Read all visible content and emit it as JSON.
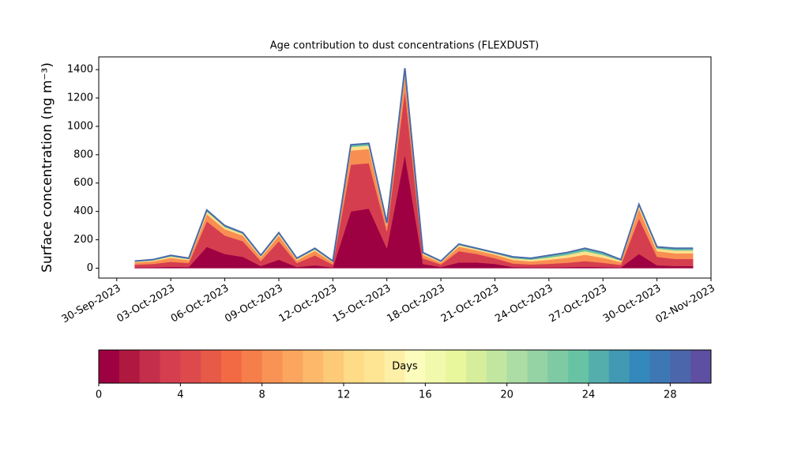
{
  "chart_data": {
    "type": "stackedarea",
    "title": "Age contribution to dust concentrations (FLEXDUST)",
    "y_label": "Surface concentration (ng m⁻³)",
    "x": [
      "2023-10-01",
      "2023-10-02",
      "2023-10-03",
      "2023-10-04",
      "2023-10-05",
      "2023-10-06",
      "2023-10-07",
      "2023-10-08",
      "2023-10-09",
      "2023-10-10",
      "2023-10-11",
      "2023-10-12",
      "2023-10-13",
      "2023-10-14",
      "2023-10-15",
      "2023-10-16",
      "2023-10-17",
      "2023-10-18",
      "2023-10-19",
      "2023-10-20",
      "2023-10-21",
      "2023-10-22",
      "2023-10-23",
      "2023-10-24",
      "2023-10-25",
      "2023-10-26",
      "2023-10-27",
      "2023-10-28",
      "2023-10-29",
      "2023-10-30",
      "2023-10-31",
      "2023-11-01"
    ],
    "series": [
      {
        "color": "#9e0142",
        "values": [
          5,
          6,
          10,
          8,
          150,
          100,
          80,
          15,
          60,
          8,
          20,
          5,
          400,
          420,
          140,
          800,
          30,
          8,
          40,
          40,
          30,
          8,
          6,
          6,
          8,
          10,
          8,
          5,
          100,
          20,
          15,
          15
        ]
      },
      {
        "color": "#d53e4f",
        "values": [
          20,
          24,
          35,
          28,
          180,
          130,
          110,
          35,
          130,
          28,
          70,
          20,
          330,
          320,
          120,
          450,
          40,
          18,
          80,
          60,
          40,
          25,
          20,
          25,
          30,
          40,
          30,
          18,
          250,
          60,
          50,
          50
        ]
      },
      {
        "color": "#f98e52",
        "values": [
          15,
          18,
          28,
          20,
          50,
          45,
          40,
          25,
          40,
          20,
          32,
          15,
          100,
          100,
          40,
          110,
          25,
          14,
          32,
          25,
          25,
          25,
          22,
          28,
          35,
          45,
          35,
          20,
          70,
          40,
          40,
          40
        ]
      },
      {
        "color": "#fee08b",
        "values": [
          6,
          7,
          10,
          8,
          20,
          15,
          12,
          9,
          12,
          8,
          10,
          6,
          25,
          25,
          12,
          30,
          9,
          6,
          11,
          9,
          9,
          12,
          12,
          16,
          20,
          25,
          20,
          10,
          20,
          18,
          20,
          20
        ]
      },
      {
        "color": "#66c2a5",
        "values": [
          4,
          5,
          7,
          6,
          10,
          10,
          8,
          6,
          8,
          6,
          8,
          4,
          15,
          15,
          8,
          20,
          6,
          4,
          7,
          6,
          6,
          10,
          10,
          15,
          17,
          20,
          17,
          7,
          10,
          12,
          15,
          15
        ]
      }
    ],
    "total": {
      "color": "#4a6aa8",
      "values": [
        50,
        60,
        90,
        70,
        410,
        300,
        250,
        90,
        250,
        70,
        140,
        50,
        870,
        880,
        320,
        1410,
        110,
        50,
        170,
        140,
        110,
        80,
        70,
        90,
        110,
        140,
        110,
        60,
        450,
        150,
        140,
        140
      ]
    },
    "xlim": [
      "2023-09-29",
      "2023-11-02"
    ],
    "xticks": [
      {
        "value": "2023-09-30",
        "label": "30-Sep-2023"
      },
      {
        "value": "2023-10-03",
        "label": "03-Oct-2023"
      },
      {
        "value": "2023-10-06",
        "label": "06-Oct-2023"
      },
      {
        "value": "2023-10-09",
        "label": "09-Oct-2023"
      },
      {
        "value": "2023-10-12",
        "label": "12-Oct-2023"
      },
      {
        "value": "2023-10-15",
        "label": "15-Oct-2023"
      },
      {
        "value": "2023-10-18",
        "label": "18-Oct-2023"
      },
      {
        "value": "2023-10-21",
        "label": "21-Oct-2023"
      },
      {
        "value": "2023-10-24",
        "label": "24-Oct-2023"
      },
      {
        "value": "2023-10-27",
        "label": "27-Oct-2023"
      },
      {
        "value": "2023-10-30",
        "label": "30-Oct-2023"
      },
      {
        "value": "2023-11-02",
        "label": "02-Nov-2023"
      }
    ],
    "ylim": [
      -70,
      1490
    ],
    "yticks": [
      0,
      200,
      400,
      600,
      800,
      1000,
      1200,
      1400
    ],
    "colorbar": {
      "label": "Days",
      "lim": [
        0,
        30
      ],
      "ticks": [
        0,
        4,
        8,
        12,
        16,
        20,
        24,
        28
      ],
      "colors": [
        "#9e0142",
        "#b0193f",
        "#c42e4a",
        "#d53e4f",
        "#dd4a4c",
        "#e75a47",
        "#f26a44",
        "#f57e4b",
        "#f99355",
        "#fca55e",
        "#fdb869",
        "#fdca78",
        "#fedb86",
        "#fee593",
        "#feefa6",
        "#fcfcbd",
        "#f1f9ac",
        "#e8f69c",
        "#d6ee9b",
        "#c1e6a0",
        "#acdda4",
        "#95d3a4",
        "#7dcaa4",
        "#68c3a5",
        "#54aeac",
        "#4199b4",
        "#3388bc",
        "#3d78b5",
        "#4c66ac",
        "#5e4fa2"
      ]
    }
  }
}
